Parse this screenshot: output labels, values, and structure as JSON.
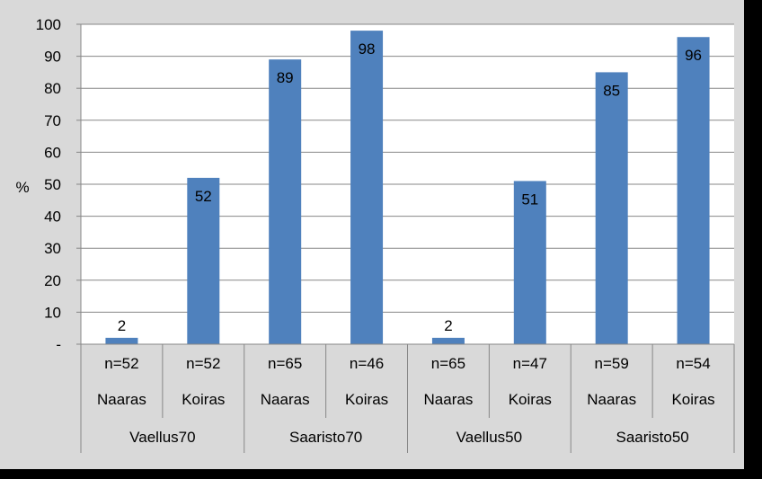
{
  "chart_data": {
    "type": "bar",
    "ylabel": "%",
    "ylim": [
      0,
      100
    ],
    "yticks": [
      "-",
      "10",
      "20",
      "30",
      "40",
      "50",
      "60",
      "70",
      "80",
      "90",
      "100"
    ],
    "grid": true,
    "bar_color": "#4f81bd",
    "categories": [
      {
        "n": "n=52",
        "sex": "Naaras",
        "group": "Vaellus70"
      },
      {
        "n": "n=52",
        "sex": "Koiras",
        "group": "Vaellus70"
      },
      {
        "n": "n=65",
        "sex": "Naaras",
        "group": "Saaristo70"
      },
      {
        "n": "n=46",
        "sex": "Koiras",
        "group": "Saaristo70"
      },
      {
        "n": "n=65",
        "sex": "Naaras",
        "group": "Vaellus50"
      },
      {
        "n": "n=47",
        "sex": "Koiras",
        "group": "Vaellus50"
      },
      {
        "n": "n=59",
        "sex": "Naaras",
        "group": "Saaristo50"
      },
      {
        "n": "n=54",
        "sex": "Koiras",
        "group": "Saaristo50"
      }
    ],
    "groups": [
      "Vaellus70",
      "Saaristo70",
      "Vaellus50",
      "Saaristo50"
    ],
    "values": [
      2,
      52,
      89,
      98,
      2,
      51,
      85,
      96
    ]
  }
}
